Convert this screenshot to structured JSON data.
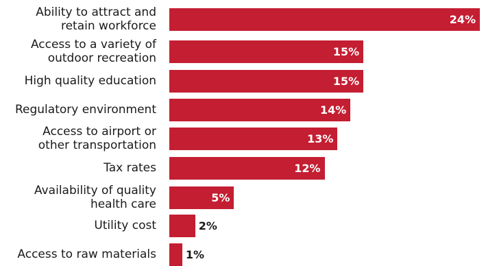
{
  "chart_data": {
    "type": "bar",
    "orientation": "horizontal",
    "bar_color": "#c41e32",
    "categories": [
      "Ability to attract and\nretain workforce",
      "Access to a variety of\noutdoor recreation",
      "High quality education",
      "Regulatory environment",
      "Access to airport or\nother transportation",
      "Tax rates",
      "Availability of quality\nhealth care",
      "Utility cost",
      "Access to raw materials"
    ],
    "values": [
      24,
      15,
      15,
      14,
      13,
      12,
      5,
      2,
      1
    ],
    "value_labels": [
      "24%",
      "15%",
      "15%",
      "14%",
      "13%",
      "12%",
      "5%",
      "2%",
      "1%"
    ],
    "xlim": [
      0,
      24
    ],
    "grid": false,
    "legend": "none"
  }
}
